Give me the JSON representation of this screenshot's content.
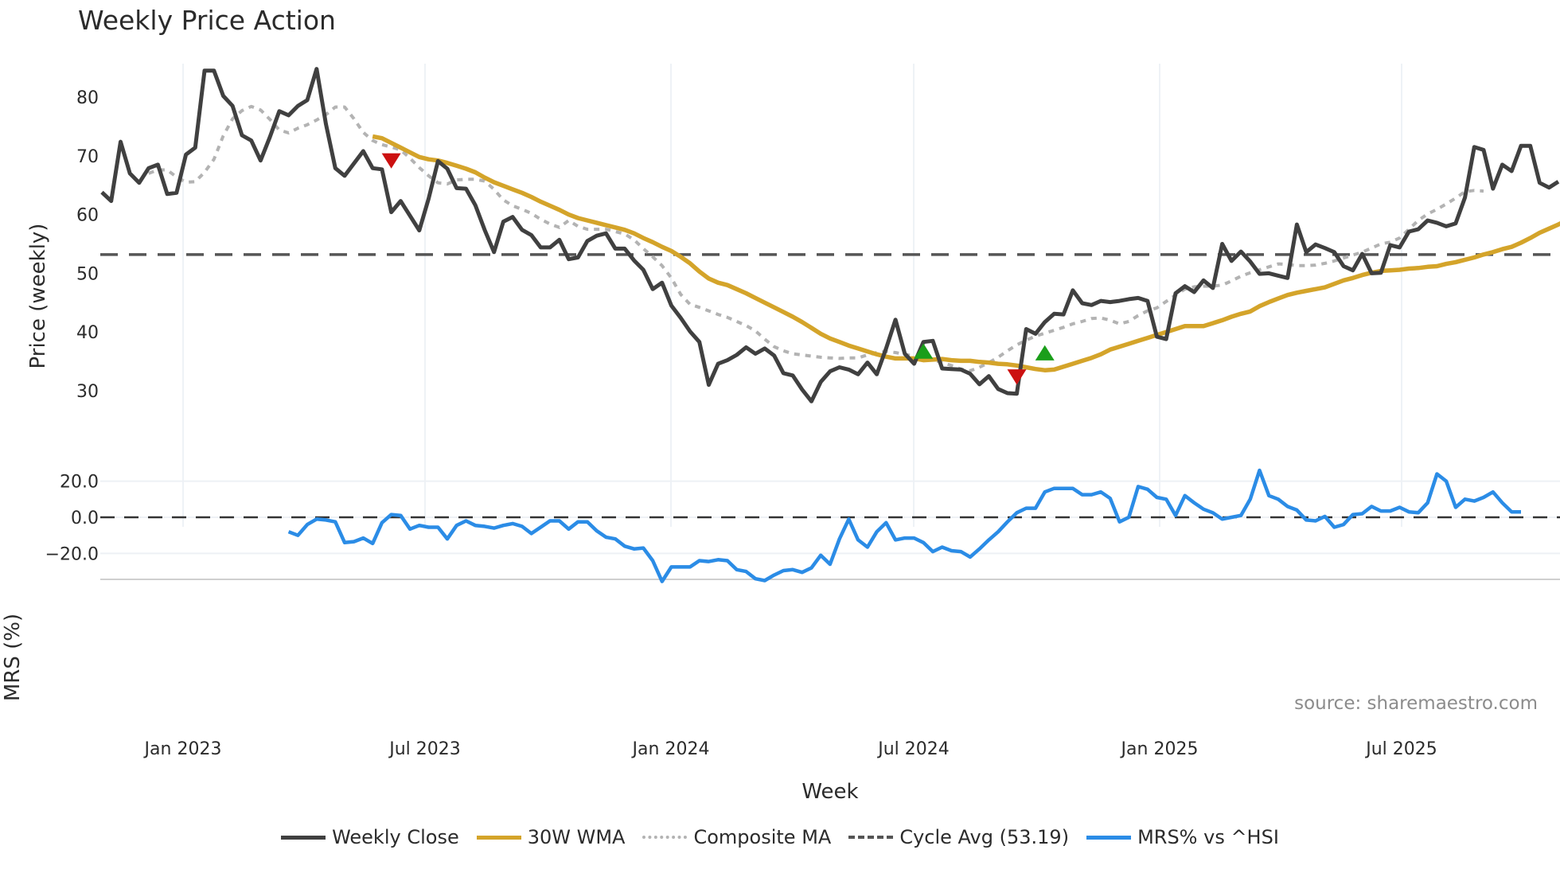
{
  "title": "Weekly Price Action",
  "source": "source: sharemaestro.com",
  "legend": [
    {
      "label": "Weekly Close",
      "color": "#404040",
      "style": "solid"
    },
    {
      "label": "30W WMA",
      "color": "#d4a42a",
      "style": "solid"
    },
    {
      "label": "Composite MA",
      "color": "#b3b3b3",
      "style": "dotted"
    },
    {
      "label": "Cycle Avg (53.19)",
      "color": "#555555",
      "style": "dashed"
    },
    {
      "label": "MRS% vs ^HSI",
      "color": "#2b8ce6",
      "style": "solid"
    }
  ],
  "chart_data": [
    {
      "type": "line",
      "title": "Weekly Price Action",
      "xlabel": "Week",
      "ylabel": "Price (weekly)",
      "x_ticks": [
        "Jan 2023",
        "Jul 2023",
        "Jan 2024",
        "Jul 2024",
        "Jan 2025",
        "Jul 2025"
      ],
      "y_ticks": [
        30,
        40,
        50,
        60,
        70,
        80
      ],
      "ylim": [
        24.5,
        87
      ],
      "grid": true,
      "cycle_avg": 53.19,
      "series": [
        {
          "name": "Weekly Close",
          "color": "#404040",
          "values": [
            63.8,
            62.3,
            72.4,
            67.0,
            65.4,
            67.9,
            68.5,
            63.5,
            63.7,
            70.2,
            71.4,
            84.5,
            84.5,
            80.2,
            78.5,
            73.5,
            72.6,
            69.2,
            73.2,
            77.6,
            76.9,
            78.5,
            79.5,
            84.8,
            75.4,
            67.9,
            66.6,
            68.7,
            70.8,
            67.9,
            67.7,
            60.4,
            62.3,
            59.8,
            57.3,
            62.7,
            69.1,
            67.8,
            64.5,
            64.4,
            61.6,
            57.4,
            53.6,
            58.8,
            59.6,
            57.4,
            56.5,
            54.4,
            54.4,
            55.7,
            52.4,
            52.7,
            55.5,
            56.4,
            56.8,
            54.2,
            54.2,
            52.2,
            50.6,
            47.3,
            48.4,
            44.5,
            42.4,
            40.1,
            38.3,
            31.0,
            34.6,
            35.2,
            36.1,
            37.4,
            36.3,
            37.2,
            36.0,
            33.0,
            32.6,
            30.2,
            28.2,
            31.5,
            33.3,
            34.0,
            33.6,
            32.8,
            34.8,
            32.8,
            37.2,
            42.1,
            36.3,
            34.6,
            38.3,
            38.5,
            33.8,
            33.7,
            33.6,
            32.9,
            31.1,
            32.5,
            30.3,
            29.6,
            29.5,
            40.5,
            39.7,
            41.7,
            43.1,
            43.0,
            47.1,
            44.9,
            44.6,
            45.3,
            45.1,
            45.3,
            45.6,
            45.8,
            45.3,
            39.2,
            38.8,
            46.6,
            47.8,
            46.8,
            48.8,
            47.5,
            55.0,
            52.1,
            53.7,
            52.0,
            49.9,
            50.0,
            49.6,
            49.2,
            58.3,
            53.6,
            54.9,
            54.3,
            53.6,
            51.2,
            50.5,
            53.3,
            50.0,
            50.1,
            54.8,
            54.4,
            57.1,
            57.5,
            59.0,
            58.6,
            58.0,
            58.5,
            62.9,
            71.5,
            71.0,
            64.4,
            68.5,
            67.4,
            71.7,
            71.7,
            65.4,
            64.6,
            65.6
          ]
        },
        {
          "name": "30W WMA",
          "color": "#d4a42a",
          "start_index": 29,
          "values": [
            73.3,
            73.0,
            72.2,
            71.4,
            70.6,
            69.8,
            69.4,
            69.2,
            68.8,
            68.3,
            67.8,
            67.2,
            66.3,
            65.5,
            64.9,
            64.3,
            63.7,
            63.0,
            62.2,
            61.5,
            60.8,
            60.0,
            59.4,
            59.0,
            58.6,
            58.2,
            57.8,
            57.4,
            56.8,
            56.0,
            55.3,
            54.5,
            53.8,
            52.8,
            51.7,
            50.3,
            49.1,
            48.4,
            48.0,
            47.3,
            46.6,
            45.8,
            45.0,
            44.2,
            43.4,
            42.6,
            41.7,
            40.7,
            39.7,
            38.9,
            38.3,
            37.7,
            37.2,
            36.7,
            36.2,
            35.8,
            35.5,
            35.5,
            35.5,
            35.2,
            35.3,
            35.4,
            35.2,
            35.1,
            35.1,
            34.9,
            34.8,
            34.6,
            34.5,
            34.3,
            34.0,
            33.7,
            33.5,
            33.6,
            34.1,
            34.6,
            35.1,
            35.6,
            36.2,
            37.0,
            37.5,
            38.0,
            38.5,
            39.0,
            39.5,
            40.0,
            40.5,
            41.0,
            41.0,
            41.0,
            41.5,
            42.0,
            42.6,
            43.1,
            43.5,
            44.4,
            45.1,
            45.7,
            46.3,
            46.7,
            47.0,
            47.3,
            47.6,
            48.2,
            48.8,
            49.2,
            49.7,
            50.1,
            50.4,
            50.5,
            50.6,
            50.8,
            50.9,
            51.1,
            51.2,
            51.6,
            51.9,
            52.3,
            52.7,
            53.2,
            53.6,
            54.1,
            54.5,
            55.2,
            56.0,
            56.9,
            57.6,
            58.3,
            59.1,
            59.9,
            60.8,
            61.4,
            61.8,
            62.3,
            62.6
          ]
        },
        {
          "name": "Composite MA",
          "color": "#b3b3b3",
          "start_index": 5,
          "values": [
            67.0,
            67.6,
            67.6,
            66.4,
            65.5,
            65.6,
            67.2,
            69.4,
            73.4,
            76.3,
            77.7,
            78.4,
            77.8,
            76.2,
            74.4,
            73.9,
            74.7,
            75.3,
            76.1,
            77.0,
            78.3,
            78.3,
            76.3,
            74.0,
            72.6,
            71.9,
            71.5,
            71.0,
            69.6,
            68.0,
            66.6,
            65.4,
            65.2,
            65.9,
            66.0,
            66.0,
            65.7,
            64.3,
            62.5,
            61.5,
            60.9,
            60.2,
            59.2,
            58.4,
            57.8,
            59.0,
            58.0,
            57.5,
            57.5,
            57.5,
            57.1,
            56.7,
            55.7,
            54.2,
            52.8,
            51.3,
            49.2,
            46.4,
            44.7,
            44.2,
            43.6,
            43.0,
            42.5,
            41.8,
            41.1,
            40.2,
            38.8,
            37.5,
            36.8,
            36.3,
            36.1,
            35.9,
            35.7,
            35.6,
            35.5,
            35.6,
            35.6,
            36.1,
            36.5,
            36.7,
            36.5,
            36.2,
            35.9,
            35.6,
            35.3,
            34.8,
            34.3,
            33.7,
            33.4,
            34.0,
            34.8,
            35.7,
            36.8,
            37.8,
            38.6,
            39.3,
            39.8,
            40.3,
            40.8,
            41.4,
            41.8,
            42.3,
            42.4,
            42.0,
            41.4,
            41.8,
            42.8,
            43.6,
            44.1,
            45.2,
            46.3,
            47.3,
            47.7,
            47.8,
            47.8,
            48.0,
            48.7,
            49.5,
            50.1,
            50.6,
            51.1,
            51.6,
            51.5,
            51.3,
            51.3,
            51.4,
            51.7,
            52.1,
            52.6,
            53.1,
            53.6,
            54.3,
            55.0,
            55.3,
            56.0,
            57.5,
            59.0,
            60.1,
            60.9,
            61.8,
            62.8,
            63.9,
            64.1,
            64.0
          ]
        }
      ],
      "markers": [
        {
          "type": "sell",
          "shape": "triangle-down",
          "color": "#cc1111",
          "x_index": 31,
          "y": 69.3
        },
        {
          "type": "buy",
          "shape": "triangle-up",
          "color": "#1a9e1a",
          "x_index": 88,
          "y": 36.6
        },
        {
          "type": "sell",
          "shape": "triangle-down",
          "color": "#cc1111",
          "x_index": 98,
          "y": 32.5
        },
        {
          "type": "buy",
          "shape": "triangle-up",
          "color": "#1a9e1a",
          "x_index": 101,
          "y": 36.3
        }
      ]
    },
    {
      "type": "line",
      "ylabel": "MRS (%)",
      "y_ticks": [
        "20.0",
        "0.0",
        "-20.0"
      ],
      "ylim": [
        -33,
        30
      ],
      "zero_line": 0,
      "series": [
        {
          "name": "MRS% vs ^HSI",
          "color": "#2b8ce6",
          "start_index": 20,
          "values": [
            -8,
            -10,
            -4,
            -1,
            -1.5,
            -2.5,
            -14,
            -13.5,
            -11.5,
            -14.5,
            -3,
            1.5,
            1,
            -6.5,
            -4.5,
            -5.5,
            -5.5,
            -12,
            -4.5,
            -2,
            -4.5,
            -5,
            -6,
            -4.5,
            -3.5,
            -5,
            -9,
            -5.5,
            -2,
            -2,
            -6.5,
            -2.5,
            -2.5,
            -7.5,
            -11,
            -12,
            -16,
            -17.5,
            -17,
            -24,
            -35.5,
            -27.5,
            -27.5,
            -27.5,
            -24,
            -24.5,
            -23.5,
            -24,
            -29,
            -30,
            -34,
            -35,
            -32,
            -29.5,
            -29,
            -30.5,
            -28,
            -21,
            -26,
            -12,
            -1,
            -12.5,
            -16.5,
            -8,
            -3,
            -12.5,
            -11.5,
            -11.5,
            -14,
            -19,
            -16.5,
            -18.5,
            -19,
            -22,
            -17.5,
            -12.5,
            -8,
            -2.5,
            2.5,
            5,
            5,
            14,
            16,
            16,
            16,
            12.5,
            12.5,
            14,
            10.5,
            -2.5,
            0,
            17,
            15.5,
            11,
            10,
            1,
            12,
            8,
            4.5,
            2.5,
            -1,
            0,
            1,
            10,
            26,
            12,
            10,
            6,
            4,
            -1.5,
            -2,
            0.5,
            -5.5,
            -4,
            1.5,
            2,
            6,
            3.5,
            3.5,
            5.5,
            3,
            2.5,
            8,
            24,
            20,
            5.5,
            10,
            9,
            11,
            14,
            8,
            3,
            3
          ]
        }
      ]
    }
  ],
  "axes": {
    "price_ylabel": "Price (weekly)",
    "mrs_ylabel": "MRS (%)",
    "xlabel": "Week"
  }
}
